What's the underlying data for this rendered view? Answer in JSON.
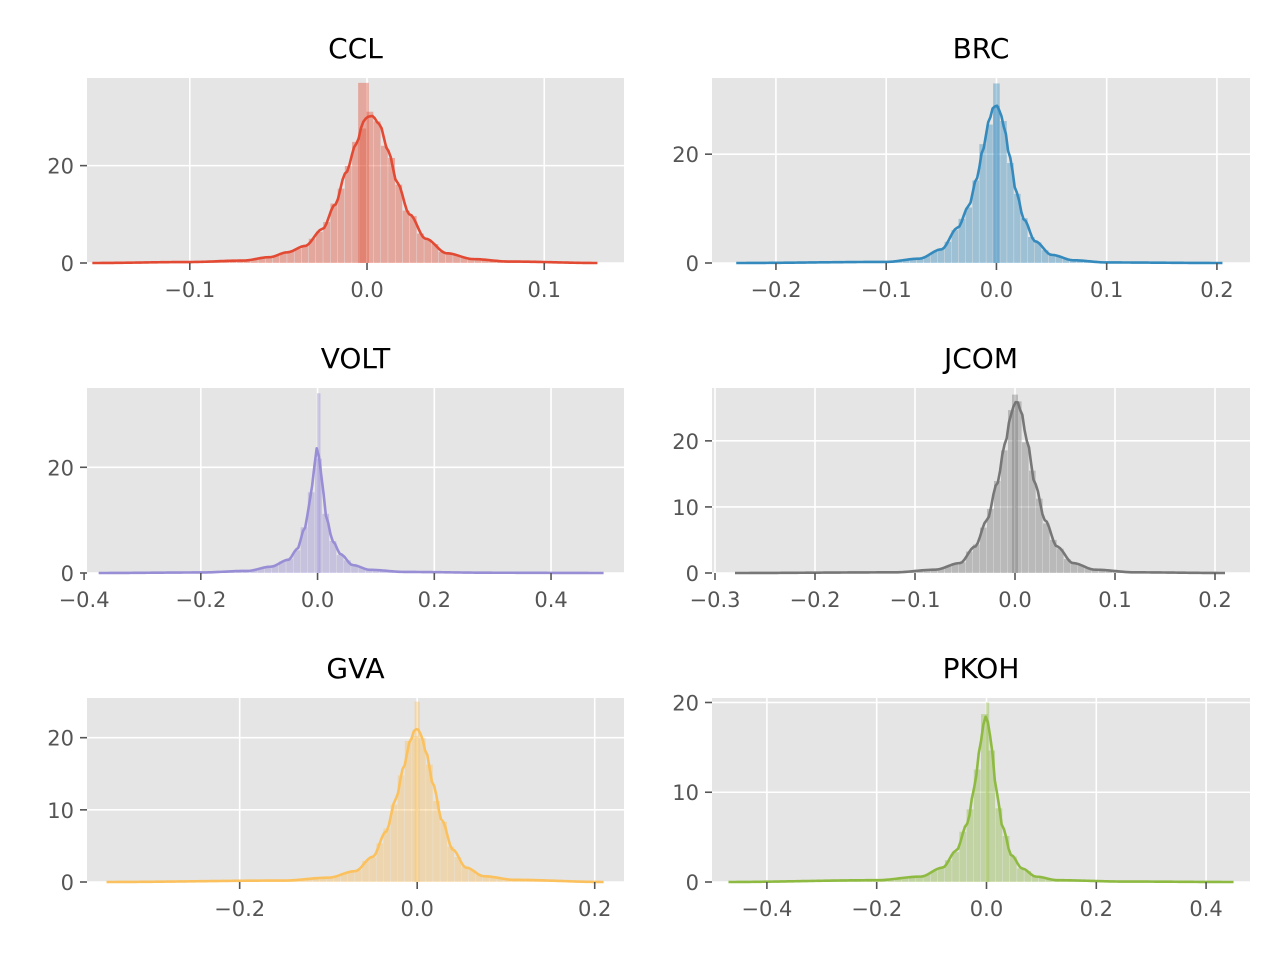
{
  "chart_data": [
    {
      "type": "histogram",
      "title": "CCL",
      "color": "#E24A33",
      "xlim": [
        -0.158,
        0.145
      ],
      "ylim": [
        0,
        38
      ],
      "xticks": [
        -0.1,
        0.0,
        0.1
      ],
      "xtick_labels": [
        "−0.1",
        "0.0",
        "0.1"
      ],
      "yticks": [
        0,
        20
      ],
      "ytick_labels": [
        "0",
        "20"
      ],
      "grid": true,
      "kde": {
        "x": [
          -0.155,
          -0.1,
          -0.07,
          -0.055,
          -0.045,
          -0.035,
          -0.025,
          -0.018,
          -0.012,
          -0.006,
          -0.002,
          0.0,
          0.003,
          0.007,
          0.012,
          0.017,
          0.024,
          0.033,
          0.045,
          0.06,
          0.08,
          0.13
        ],
        "y": [
          0.0,
          0.2,
          0.5,
          1.2,
          2.2,
          3.5,
          7.0,
          12.0,
          18.5,
          24.5,
          29.0,
          30.0,
          30.2,
          28.5,
          23.0,
          16.5,
          10.0,
          5.0,
          2.0,
          0.8,
          0.3,
          0.0
        ]
      },
      "spike": {
        "x": -0.002,
        "y": 37
      }
    },
    {
      "type": "histogram",
      "title": "BRC",
      "color": "#348ABD",
      "xlim": [
        -0.258,
        0.23
      ],
      "ylim": [
        0,
        34
      ],
      "xticks": [
        -0.2,
        -0.1,
        0.0,
        0.1,
        0.2
      ],
      "xtick_labels": [
        "−0.2",
        "−0.1",
        "0.0",
        "0.1",
        "0.2"
      ],
      "yticks": [
        0,
        20
      ],
      "ytick_labels": [
        "0",
        "20"
      ],
      "grid": true,
      "kde": {
        "x": [
          -0.236,
          -0.1,
          -0.07,
          -0.05,
          -0.035,
          -0.025,
          -0.018,
          -0.012,
          -0.007,
          -0.003,
          0.0,
          0.003,
          0.007,
          0.012,
          0.018,
          0.025,
          0.035,
          0.05,
          0.07,
          0.1,
          0.205
        ],
        "y": [
          0.0,
          0.2,
          0.8,
          2.5,
          6.5,
          10.5,
          15.5,
          21.0,
          26.0,
          28.5,
          29.0,
          28.0,
          25.0,
          19.5,
          13.0,
          8.0,
          4.0,
          1.5,
          0.5,
          0.1,
          0.0
        ]
      },
      "spike": {
        "x": 0.0,
        "y": 33
      }
    },
    {
      "type": "histogram",
      "title": "VOLT",
      "color": "#988ED5",
      "xlim": [
        -0.395,
        0.525
      ],
      "ylim": [
        0,
        35
      ],
      "xticks": [
        -0.4,
        -0.2,
        0.0,
        0.2,
        0.4
      ],
      "xtick_labels": [
        "−0.4",
        "−0.2",
        "0.0",
        "0.2",
        "0.4"
      ],
      "yticks": [
        0,
        20
      ],
      "ytick_labels": [
        "0",
        "20"
      ],
      "grid": true,
      "kde": {
        "x": [
          -0.375,
          -0.2,
          -0.12,
          -0.08,
          -0.05,
          -0.035,
          -0.022,
          -0.012,
          -0.006,
          -0.002,
          0.0,
          0.004,
          0.009,
          0.016,
          0.026,
          0.04,
          0.06,
          0.09,
          0.15,
          0.3,
          0.49
        ],
        "y": [
          0.0,
          0.1,
          0.4,
          1.2,
          2.5,
          4.5,
          8.5,
          14.0,
          20.0,
          23.5,
          24.0,
          21.0,
          15.5,
          10.0,
          6.0,
          3.5,
          1.5,
          0.6,
          0.2,
          0.05,
          0.0
        ]
      },
      "spike": {
        "x": 0.002,
        "y": 34
      }
    },
    {
      "type": "histogram",
      "title": "JCOM",
      "color": "#777777",
      "xlim": [
        -0.303,
        0.235
      ],
      "ylim": [
        0,
        28
      ],
      "xticks": [
        -0.3,
        -0.2,
        -0.1,
        0.0,
        0.1,
        0.2
      ],
      "xtick_labels": [
        "−0.3",
        "−0.2",
        "−0.1",
        "0.0",
        "0.1",
        "0.2"
      ],
      "yticks": [
        0,
        10,
        20
      ],
      "ytick_labels": [
        "0",
        "10",
        "20"
      ],
      "grid": true,
      "kde": {
        "x": [
          -0.28,
          -0.12,
          -0.08,
          -0.055,
          -0.04,
          -0.028,
          -0.018,
          -0.01,
          -0.004,
          0.0,
          0.002,
          0.006,
          0.012,
          0.02,
          0.03,
          0.042,
          0.058,
          0.08,
          0.12,
          0.21
        ],
        "y": [
          0.0,
          0.1,
          0.5,
          1.5,
          4.0,
          8.0,
          13.5,
          19.5,
          24.0,
          25.8,
          26.0,
          24.5,
          20.0,
          13.5,
          8.0,
          4.0,
          1.5,
          0.5,
          0.1,
          0.0
        ]
      },
      "spike": {
        "x": 0.0,
        "y": 27
      }
    },
    {
      "type": "histogram",
      "title": "GVA",
      "color": "#FBC15E",
      "xlim": [
        -0.372,
        0.233
      ],
      "ylim": [
        0,
        25.5
      ],
      "xticks": [
        -0.2,
        0.0,
        0.2
      ],
      "xtick_labels": [
        "−0.2",
        "0.0",
        "0.2"
      ],
      "yticks": [
        0,
        10,
        20
      ],
      "ytick_labels": [
        "0",
        "10",
        "20"
      ],
      "grid": true,
      "kde": {
        "x": [
          -0.35,
          -0.15,
          -0.1,
          -0.07,
          -0.05,
          -0.035,
          -0.024,
          -0.015,
          -0.008,
          -0.003,
          0.0,
          0.004,
          0.01,
          0.018,
          0.028,
          0.04,
          0.055,
          0.075,
          0.11,
          0.21
        ],
        "y": [
          0.0,
          0.2,
          0.6,
          1.5,
          3.5,
          7.0,
          11.5,
          16.0,
          19.5,
          21.0,
          21.3,
          20.5,
          18.0,
          13.5,
          8.5,
          4.5,
          2.0,
          0.8,
          0.3,
          0.0
        ]
      },
      "spike": {
        "x": 0.0,
        "y": 25
      }
    },
    {
      "type": "histogram",
      "title": "PKOH",
      "color": "#8EBA42",
      "xlim": [
        -0.5,
        0.48
      ],
      "ylim": [
        0,
        20.5
      ],
      "xticks": [
        -0.4,
        -0.2,
        0.0,
        0.2,
        0.4
      ],
      "xtick_labels": [
        "−0.4",
        "−0.2",
        "0.0",
        "0.2",
        "0.4"
      ],
      "yticks": [
        0,
        10,
        20
      ],
      "ytick_labels": [
        "0",
        "10",
        "20"
      ],
      "grid": true,
      "kde": {
        "x": [
          -0.47,
          -0.2,
          -0.12,
          -0.08,
          -0.055,
          -0.035,
          -0.022,
          -0.013,
          -0.006,
          -0.002,
          0.0,
          0.004,
          0.01,
          0.018,
          0.03,
          0.045,
          0.065,
          0.09,
          0.13,
          0.25,
          0.45
        ],
        "y": [
          0.0,
          0.2,
          0.6,
          1.6,
          3.5,
          6.5,
          10.5,
          14.5,
          17.5,
          18.4,
          18.5,
          17.5,
          14.5,
          10.0,
          6.0,
          3.0,
          1.5,
          0.6,
          0.2,
          0.05,
          0.0
        ]
      },
      "spike": {
        "x": 0.002,
        "y": 20
      }
    }
  ]
}
